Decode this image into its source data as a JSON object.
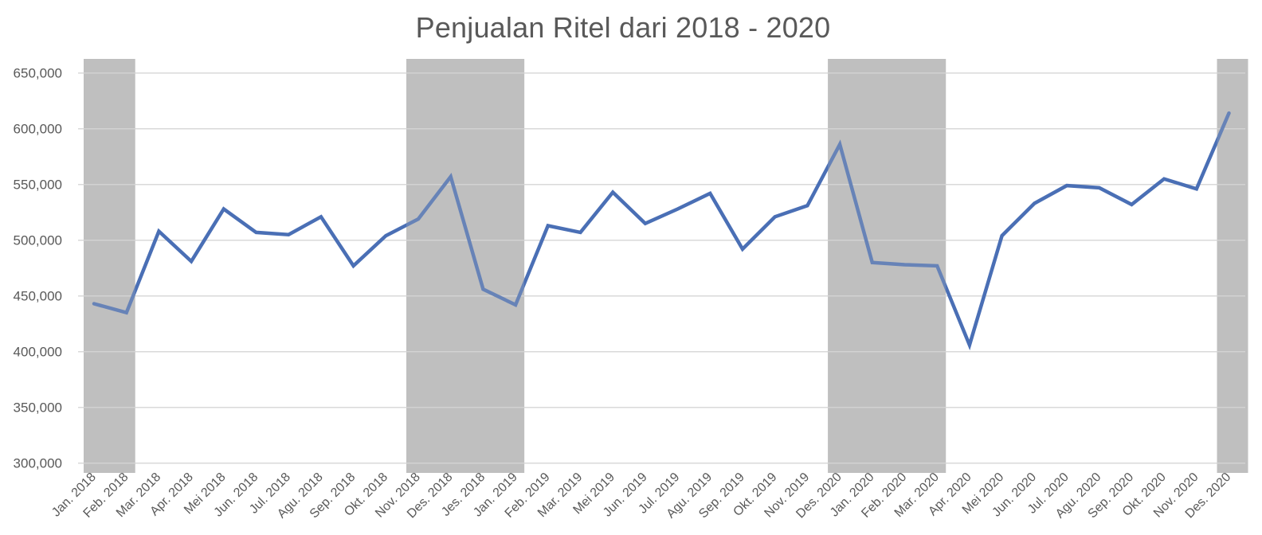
{
  "chart_data": {
    "type": "line",
    "title": "Penjualan Ritel dari 2018 - 2020",
    "xlabel": "",
    "ylabel": "",
    "ylim": [
      300000,
      650000
    ],
    "yticks": [
      300000,
      350000,
      400000,
      450000,
      500000,
      550000,
      600000,
      650000
    ],
    "ytick_labels": [
      "300,000",
      "350,000",
      "400,000",
      "450,000",
      "500,000",
      "550,000",
      "600,000",
      "650,000"
    ],
    "grid": true,
    "legend": null,
    "categories": [
      "Jan. 2018",
      "Feb. 2018",
      "Mar. 2018",
      "Apr. 2018",
      "Mei 2018",
      "Jun. 2018",
      "Jul. 2018",
      "Agu. 2018",
      "Sep. 2018",
      "Okt. 2018",
      "Nov. 2018",
      "Des. 2018",
      "Jes. 2018",
      "Jan. 2019",
      "Feb. 2019",
      "Mar. 2019",
      "Mei 2019",
      "Jun. 2019",
      "Jul. 2019",
      "Agu. 2019",
      "Sep. 2019",
      "Okt. 2019",
      "Nov. 2019",
      "Des. 2020",
      "Jan. 2020",
      "Feb. 2020",
      "Mar. 2020",
      "Apr. 2020",
      "Mei 2020",
      "Jun. 2020",
      "Jul. 2020",
      "Agu. 2020",
      "Sep. 2020",
      "Okt. 2020",
      "Nov. 2020",
      "Des. 2020"
    ],
    "series": [
      {
        "name": "Penjualan Ritel",
        "color": "#4a6fb5",
        "values": [
          443000,
          435000,
          508000,
          481000,
          528000,
          507000,
          505000,
          521000,
          477000,
          504000,
          519000,
          557000,
          456000,
          442000,
          513000,
          507000,
          543000,
          515000,
          528000,
          542000,
          492000,
          521000,
          531000,
          586000,
          480000,
          478000,
          477000,
          406000,
          504000,
          533000,
          549000,
          547000,
          532000,
          555000,
          546000,
          614000
        ]
      }
    ],
    "shaded_regions": [
      {
        "from_index": 0,
        "to_index": 1,
        "color": "#bfbfbf"
      },
      {
        "from_index": 10,
        "to_index": 13,
        "color": "#bfbfbf"
      },
      {
        "from_index": 23,
        "to_index": 26,
        "color": "#bfbfbf"
      },
      {
        "from_index": 35,
        "to_index": 35,
        "color": "#bfbfbf"
      }
    ]
  },
  "style": {
    "gridline_color": "#d9d9d9",
    "text_color": "#595959",
    "line_color": "#4a6fb5",
    "shade_color": "#bfbfbf"
  }
}
